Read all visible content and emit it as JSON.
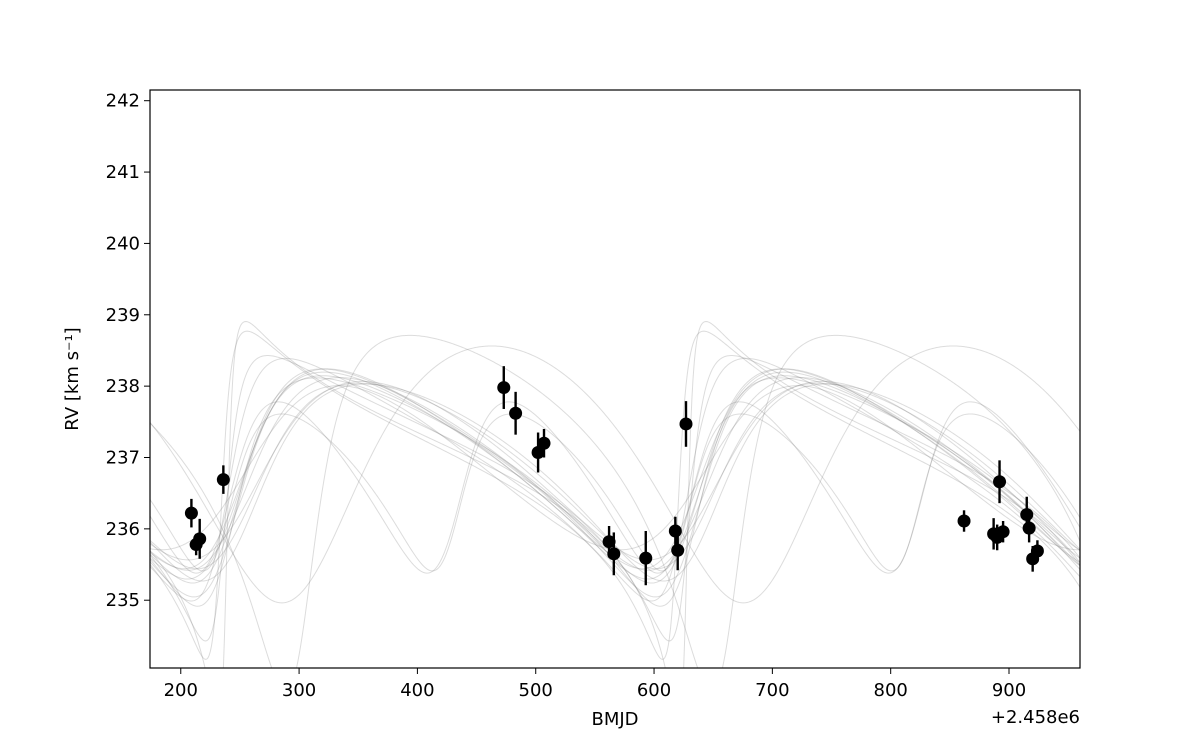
{
  "chart_data": {
    "type": "scatter",
    "title": "",
    "xlabel": "BMJD",
    "ylabel": "RV [km s⁻¹]",
    "x_offset_label": "+2.458e6",
    "xlim": [
      174,
      960
    ],
    "ylim": [
      234.05,
      242.15
    ],
    "x_ticks": [
      200,
      300,
      400,
      500,
      600,
      700,
      800,
      900
    ],
    "y_ticks": [
      235,
      236,
      237,
      238,
      239,
      240,
      241,
      242
    ],
    "grid": false,
    "legend": "none",
    "colors": {
      "points": "#000000",
      "models": "#808080"
    },
    "series": [
      {
        "kind": "observations",
        "points": [
          {
            "x": 209,
            "y": 236.22,
            "err": 0.2
          },
          {
            "x": 213,
            "y": 235.78,
            "err": 0.15
          },
          {
            "x": 216,
            "y": 235.86,
            "err": 0.28
          },
          {
            "x": 236,
            "y": 236.69,
            "err": 0.2
          },
          {
            "x": 473,
            "y": 237.98,
            "err": 0.3
          },
          {
            "x": 483,
            "y": 237.62,
            "err": 0.3
          },
          {
            "x": 502,
            "y": 237.07,
            "err": 0.28
          },
          {
            "x": 507,
            "y": 237.2,
            "err": 0.2
          },
          {
            "x": 562,
            "y": 235.82,
            "err": 0.22
          },
          {
            "x": 566,
            "y": 235.65,
            "err": 0.3
          },
          {
            "x": 593,
            "y": 235.59,
            "err": 0.38
          },
          {
            "x": 618,
            "y": 235.97,
            "err": 0.2
          },
          {
            "x": 620,
            "y": 235.7,
            "err": 0.28
          },
          {
            "x": 627,
            "y": 237.47,
            "err": 0.32
          },
          {
            "x": 862,
            "y": 236.11,
            "err": 0.15
          },
          {
            "x": 887,
            "y": 235.93,
            "err": 0.22
          },
          {
            "x": 890,
            "y": 235.88,
            "err": 0.18
          },
          {
            "x": 892,
            "y": 236.66,
            "err": 0.3
          },
          {
            "x": 895,
            "y": 235.96,
            "err": 0.15
          },
          {
            "x": 915,
            "y": 236.2,
            "err": 0.25
          },
          {
            "x": 917,
            "y": 236.01,
            "err": 0.2
          },
          {
            "x": 920,
            "y": 235.58,
            "err": 0.18
          },
          {
            "x": 924,
            "y": 235.69,
            "err": 0.15
          }
        ]
      }
    ],
    "model_curves": [
      {
        "P": 389,
        "K": 1.35,
        "e": 0.3,
        "w": 4.25,
        "Tp": 245,
        "g": 236.95
      },
      {
        "P": 389,
        "K": 1.45,
        "e": 0.35,
        "w": 4.3,
        "Tp": 242,
        "g": 236.95
      },
      {
        "P": 390,
        "K": 1.55,
        "e": 0.4,
        "w": 4.2,
        "Tp": 240,
        "g": 236.9
      },
      {
        "P": 388,
        "K": 1.3,
        "e": 0.28,
        "w": 4.1,
        "Tp": 248,
        "g": 236.95
      },
      {
        "P": 387,
        "K": 1.4,
        "e": 0.32,
        "w": 4.35,
        "Tp": 244,
        "g": 237.0
      },
      {
        "P": 391,
        "K": 1.6,
        "e": 0.45,
        "w": 4.15,
        "Tp": 238,
        "g": 236.9
      },
      {
        "P": 389,
        "K": 1.25,
        "e": 0.22,
        "w": 4.2,
        "Tp": 250,
        "g": 236.95
      },
      {
        "P": 389,
        "K": 1.7,
        "e": 0.5,
        "w": 4.4,
        "Tp": 236,
        "g": 236.95
      },
      {
        "P": 390,
        "K": 1.38,
        "e": 0.3,
        "w": 4.0,
        "Tp": 247,
        "g": 236.92
      },
      {
        "P": 388,
        "K": 1.5,
        "e": 0.38,
        "w": 4.28,
        "Tp": 243,
        "g": 236.98
      },
      {
        "P": 392,
        "K": 2.0,
        "e": 0.65,
        "w": 4.3,
        "Tp": 235,
        "g": 236.95
      },
      {
        "P": 386,
        "K": 2.3,
        "e": 0.72,
        "w": 4.45,
        "Tp": 233,
        "g": 236.9
      },
      {
        "P": 389,
        "K": 2.8,
        "e": 0.8,
        "w": 4.35,
        "Tp": 238,
        "g": 236.9
      },
      {
        "P": 195,
        "K": 1.2,
        "e": 0.25,
        "w": 4.3,
        "Tp": 236,
        "g": 236.7
      },
      {
        "P": 194,
        "K": 1.1,
        "e": 0.3,
        "w": 4.1,
        "Tp": 235,
        "g": 236.7
      },
      {
        "P": 390,
        "K": 1.8,
        "e": 0.2,
        "w": 3.5,
        "Tp": 300,
        "g": 237.1
      },
      {
        "P": 360,
        "K": 2.5,
        "e": 0.5,
        "w": 3.8,
        "Tp": 300,
        "g": 237.2
      },
      {
        "P": 388,
        "K": 1.15,
        "e": 0.18,
        "w": 4.6,
        "Tp": 252,
        "g": 236.88
      }
    ]
  }
}
